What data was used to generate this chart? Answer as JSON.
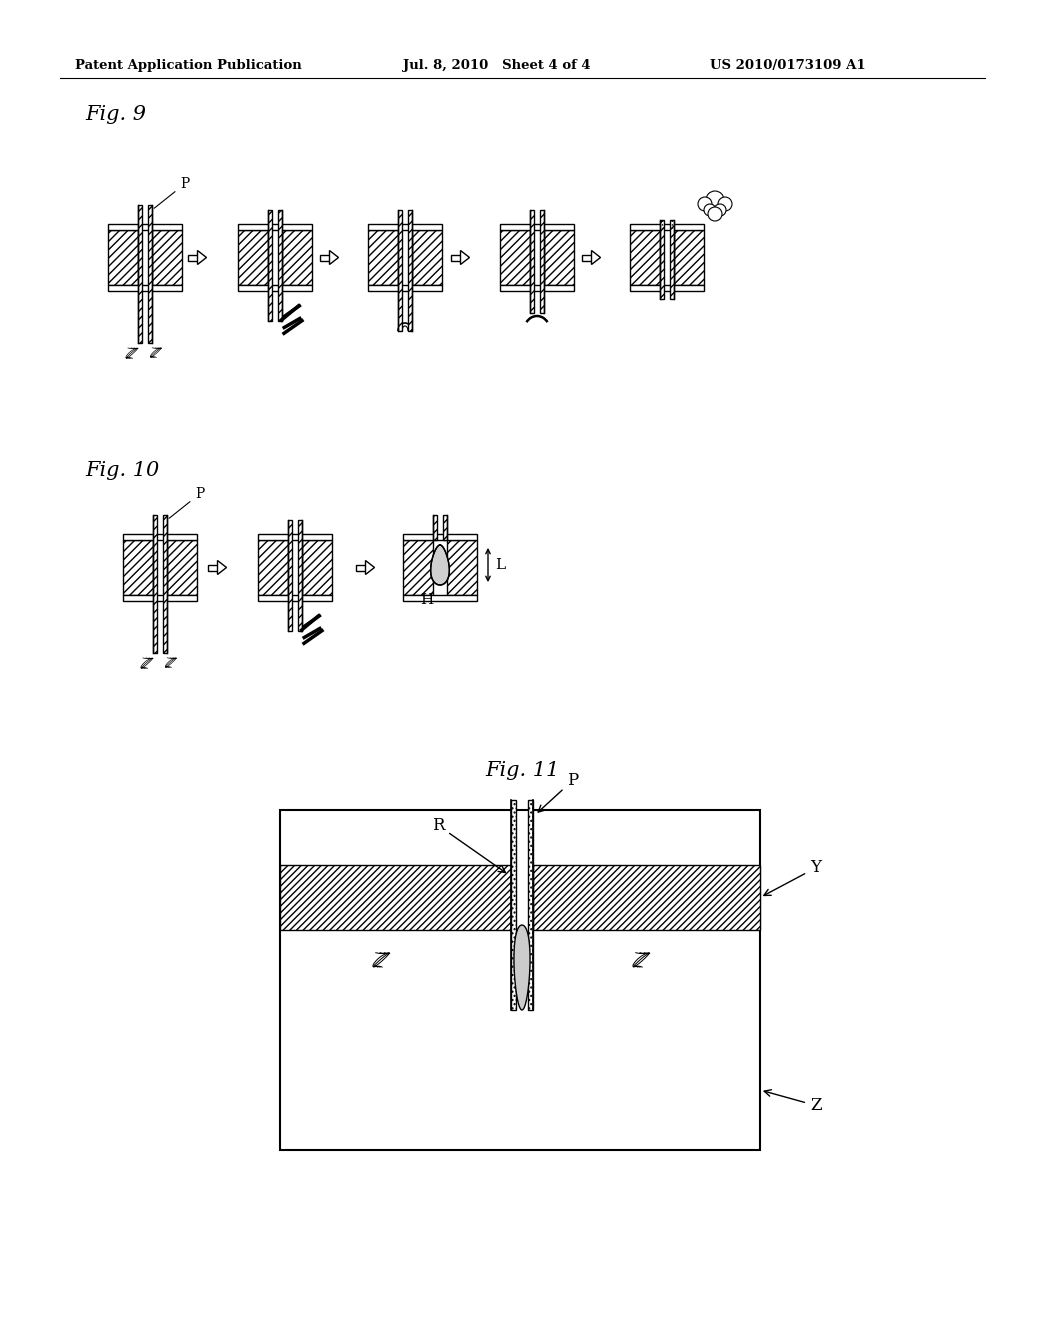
{
  "background_color": "#ffffff",
  "header_left": "Patent Application Publication",
  "header_mid": "Jul. 8, 2010   Sheet 4 of 4",
  "header_right": "US 2010/0173109 A1",
  "fig9_label": "Fig. 9",
  "fig10_label": "Fig. 10",
  "fig11_label": "Fig. 11",
  "line_color": "#000000"
}
